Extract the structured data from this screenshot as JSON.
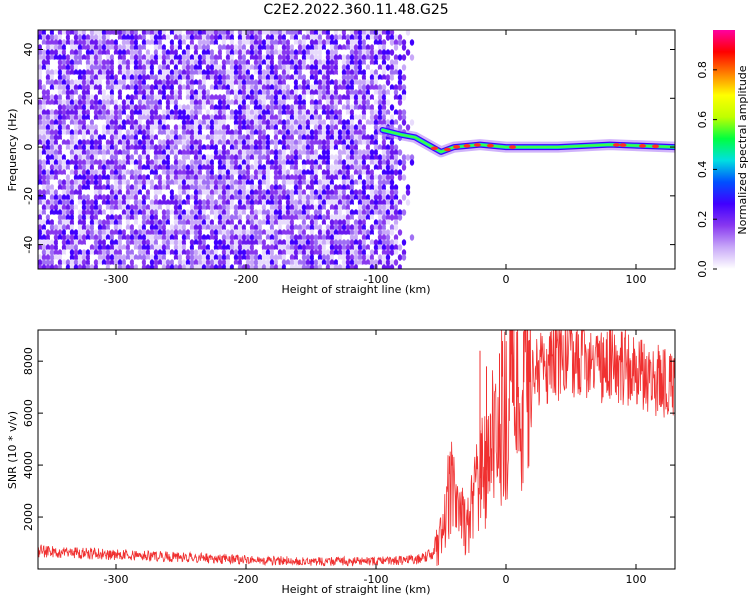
{
  "figure": {
    "title": "C2E2.2022.360.11.48.G25"
  },
  "chart_data": [
    {
      "type": "heatmap",
      "title": "",
      "xlabel": "Height of straight line (km)",
      "ylabel": "Frequency (Hz)",
      "xlim": [
        -360,
        130
      ],
      "ylim": [
        -50,
        48
      ],
      "xticks": [
        -300,
        -200,
        -100,
        0,
        100
      ],
      "yticks": [
        -40,
        -20,
        0,
        20,
        40
      ],
      "tick_labels_x": [
        "-300",
        "-200",
        "-100",
        "0",
        "100"
      ],
      "tick_labels_y": [
        "-40",
        "-20",
        "0",
        "20",
        "40"
      ],
      "grid": false,
      "noise_region": {
        "x": [
          -360,
          -72
        ],
        "y": [
          -50,
          48
        ]
      },
      "signal_band": [
        {
          "x": -95,
          "y": 7
        },
        {
          "x": -80,
          "y": 5
        },
        {
          "x": -70,
          "y": 4
        },
        {
          "x": -60,
          "y": 1
        },
        {
          "x": -50,
          "y": -2
        },
        {
          "x": -40,
          "y": 0
        },
        {
          "x": -20,
          "y": 1
        },
        {
          "x": 0,
          "y": 0
        },
        {
          "x": 40,
          "y": 0
        },
        {
          "x": 80,
          "y": 1
        },
        {
          "x": 130,
          "y": 0
        }
      ],
      "colorbar": {
        "label": "Normalized spectral amplitude",
        "range": [
          0,
          0.96
        ],
        "ticks": [
          0.0,
          0.2,
          0.4,
          0.6,
          0.8
        ],
        "tick_labels": [
          "0.0",
          "0.2",
          "0.4",
          "0.6",
          "0.8"
        ],
        "colormap": [
          "#ffffff",
          "#c8a8f8",
          "#8838f0",
          "#4000ff",
          "#0050ff",
          "#00e0e0",
          "#00ff40",
          "#c0ff00",
          "#ffff00",
          "#ff8000",
          "#ff0000",
          "#ff00a0"
        ]
      }
    },
    {
      "type": "line",
      "title": "",
      "xlabel": "Height of straight line (km)",
      "ylabel": "SNR (10 * v/v)",
      "xlim": [
        -360,
        130
      ],
      "ylim": [
        0,
        9200
      ],
      "xticks": [
        -300,
        -200,
        -100,
        0,
        100
      ],
      "yticks": [
        2000,
        4000,
        6000,
        8000
      ],
      "tick_labels_x": [
        "-300",
        "-200",
        "-100",
        "0",
        "100"
      ],
      "tick_labels_y": [
        "2000",
        "4000",
        "6000",
        "8000"
      ],
      "grid": false,
      "series": [
        {
          "color": "#f03030",
          "x": [
            -360,
            -300,
            -250,
            -200,
            -150,
            -100,
            -70,
            -55,
            -50,
            -45,
            -40,
            -35,
            -30,
            -25,
            -20,
            -15,
            -10,
            -5,
            0,
            5,
            10,
            15,
            20,
            25,
            30,
            40,
            50,
            60,
            70,
            80,
            90,
            100,
            110,
            120,
            130
          ],
          "y": [
            700,
            550,
            450,
            350,
            300,
            300,
            350,
            600,
            1200,
            2600,
            3300,
            2000,
            1500,
            2600,
            3500,
            3800,
            5000,
            5600,
            6200,
            6400,
            6700,
            7100,
            7400,
            7700,
            7900,
            8000,
            8050,
            8000,
            7950,
            7850,
            7800,
            7500,
            7350,
            7250,
            7200
          ]
        }
      ]
    }
  ]
}
